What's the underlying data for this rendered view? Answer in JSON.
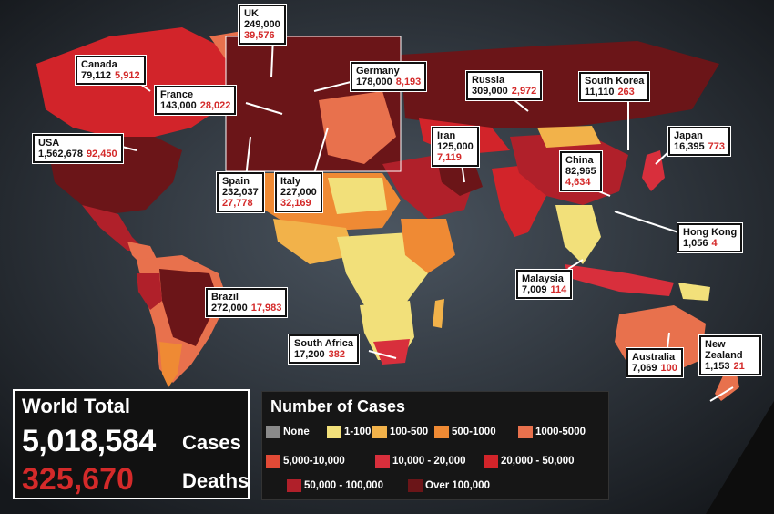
{
  "colors": {
    "none": "#8a8a8a",
    "c1_100": "#f2e07a",
    "c100_500": "#f2b24a",
    "c500_1000": "#ef8a34",
    "c1000_5000": "#e8714d",
    "c5000_10000": "#e24a36",
    "c10000_20000": "#d82f3c",
    "c20000_50000": "#d2242a",
    "c50000_100000": "#b0202a",
    "over100000": "#6b1518"
  },
  "countries": [
    {
      "key": "uk",
      "name": "UK",
      "cases": "249,000",
      "deaths": "39,576"
    },
    {
      "key": "canada",
      "name": "Canada",
      "cases": "79,112",
      "deaths": "5,912"
    },
    {
      "key": "germany",
      "name": "Germany",
      "cases": "178,000",
      "deaths": "8,193"
    },
    {
      "key": "france",
      "name": "France",
      "cases": "143,000",
      "deaths": "28,022"
    },
    {
      "key": "russia",
      "name": "Russia",
      "cases": "309,000",
      "deaths": "2,972"
    },
    {
      "key": "south_korea",
      "name": "South Korea",
      "cases": "11,110",
      "deaths": "263"
    },
    {
      "key": "usa",
      "name": "USA",
      "cases": "1,562,678",
      "deaths": "92,450"
    },
    {
      "key": "iran",
      "name": "Iran",
      "cases": "125,000",
      "deaths": "7,119"
    },
    {
      "key": "japan",
      "name": "Japan",
      "cases": "16,395",
      "deaths": "773"
    },
    {
      "key": "china",
      "name": "China",
      "cases": "82,965",
      "deaths": "4,634"
    },
    {
      "key": "spain",
      "name": "Spain",
      "cases": "232,037",
      "deaths": "27,778"
    },
    {
      "key": "italy",
      "name": "Italy",
      "cases": "227,000",
      "deaths": "32,169"
    },
    {
      "key": "hong_kong",
      "name": "Hong Kong",
      "cases": "1,056",
      "deaths": "4"
    },
    {
      "key": "malaysia",
      "name": "Malaysia",
      "cases": "7,009",
      "deaths": "114"
    },
    {
      "key": "brazil",
      "name": "Brazil",
      "cases": "272,000",
      "deaths": "17,983"
    },
    {
      "key": "south_africa",
      "name": "South Africa",
      "cases": "17,200",
      "deaths": "382"
    },
    {
      "key": "australia",
      "name": "Australia",
      "cases": "7,069",
      "deaths": "100"
    },
    {
      "key": "new_zealand",
      "name": "New Zealand",
      "cases": "1,153",
      "deaths": "21"
    }
  ],
  "world_total": {
    "title": "World Total",
    "cases": "5,018,584",
    "cases_label": "Cases",
    "deaths": "325,670",
    "deaths_label": "Deaths"
  },
  "legend": {
    "title": "Number of Cases",
    "items": [
      {
        "label": "None",
        "color": "#8a8a8a"
      },
      {
        "label": "1-100",
        "color": "#f2e07a"
      },
      {
        "label": "100-500",
        "color": "#f2b24a"
      },
      {
        "label": "500-1000",
        "color": "#ef8a34"
      },
      {
        "label": "1000-5000",
        "color": "#e8714d"
      },
      {
        "label": "5,000-10,000",
        "color": "#e24a36"
      },
      {
        "label": "10,000 - 20,000",
        "color": "#d82f3c"
      },
      {
        "label": "20,000 - 50,000",
        "color": "#d2242a"
      },
      {
        "label": "50,000 - 100,000",
        "color": "#b0202a"
      },
      {
        "label": "Over 100,000",
        "color": "#6b1518"
      }
    ]
  }
}
